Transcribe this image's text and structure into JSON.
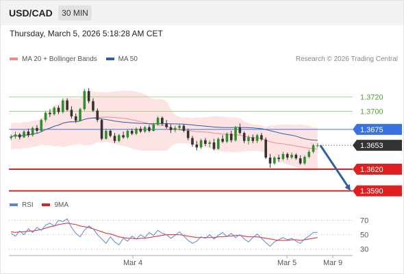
{
  "header": {
    "symbol": "USD/CAD",
    "timeframe": "30 MIN"
  },
  "datetime": "Thursday, March 5, 2026 5:18:28 AM CET",
  "legend": [
    {
      "label": "MA 20 + Bollinger Bands",
      "color": "#f08a8a"
    },
    {
      "label": "MA 50",
      "color": "#2e5e9e"
    }
  ],
  "credit": "Research © 2026 Trading Central",
  "rsi_legend": [
    {
      "label": "RSI",
      "color": "#5b86d6"
    },
    {
      "label": "9MA",
      "color": "#e02020"
    }
  ],
  "colors": {
    "resistance_green": "#a9d58b",
    "support_red": "#e02020",
    "pivot_blue": "#3a73e0",
    "last_price": "#333333",
    "arrow": "#2f5f9e",
    "candle_up": "#2d8f2d",
    "candle_down": "#333333",
    "band_fill": "#fde3e3"
  },
  "chart_data": [
    {
      "type": "line",
      "subtype": "candlestick",
      "x_tick_labels": [
        "Mar 4",
        "Mar 5",
        "Mar 9"
      ],
      "ylim": [
        1.3584,
        1.3762
      ],
      "levels": [
        {
          "value": 1.372,
          "label": "1.3720",
          "kind": "resistance"
        },
        {
          "value": 1.37,
          "label": "1.3700",
          "kind": "resistance"
        },
        {
          "value": 1.3675,
          "label": "1.3675",
          "kind": "pivot"
        },
        {
          "value": 1.3653,
          "label": "1.3653",
          "kind": "last"
        },
        {
          "value": 1.362,
          "label": "1.3620",
          "kind": "support"
        },
        {
          "value": 1.359,
          "label": "1.3590",
          "kind": "support"
        }
      ],
      "candles": [
        [
          1.3663,
          1.3668,
          1.366,
          1.3665
        ],
        [
          1.3665,
          1.3672,
          1.3662,
          1.3668
        ],
        [
          1.3668,
          1.367,
          1.3661,
          1.3664
        ],
        [
          1.3664,
          1.3674,
          1.3663,
          1.3672
        ],
        [
          1.3672,
          1.3676,
          1.3664,
          1.3667
        ],
        [
          1.3667,
          1.3679,
          1.3665,
          1.3677
        ],
        [
          1.3677,
          1.3681,
          1.367,
          1.3673
        ],
        [
          1.3673,
          1.369,
          1.3672,
          1.3688
        ],
        [
          1.3688,
          1.37,
          1.3685,
          1.3698
        ],
        [
          1.3698,
          1.3703,
          1.3692,
          1.3696
        ],
        [
          1.3696,
          1.3707,
          1.3694,
          1.3705
        ],
        [
          1.3705,
          1.3708,
          1.3696,
          1.3699
        ],
        [
          1.3699,
          1.3718,
          1.3697,
          1.3715
        ],
        [
          1.3715,
          1.3718,
          1.37,
          1.3702
        ],
        [
          1.3702,
          1.3707,
          1.369,
          1.3693
        ],
        [
          1.3693,
          1.3697,
          1.3684,
          1.3687
        ],
        [
          1.3687,
          1.3705,
          1.3686,
          1.3703
        ],
        [
          1.3703,
          1.3731,
          1.3701,
          1.3728
        ],
        [
          1.3728,
          1.3732,
          1.3711,
          1.3714
        ],
        [
          1.3714,
          1.3718,
          1.3699,
          1.3701
        ],
        [
          1.3701,
          1.3704,
          1.3685,
          1.3688
        ],
        [
          1.3688,
          1.369,
          1.366,
          1.3662
        ],
        [
          1.3662,
          1.3676,
          1.3661,
          1.3673
        ],
        [
          1.3673,
          1.3675,
          1.3664,
          1.3666
        ],
        [
          1.3666,
          1.367,
          1.3656,
          1.3659
        ],
        [
          1.3659,
          1.3669,
          1.3657,
          1.3667
        ],
        [
          1.3667,
          1.3672,
          1.3662,
          1.3664
        ],
        [
          1.3664,
          1.3675,
          1.3662,
          1.3673
        ],
        [
          1.3673,
          1.3676,
          1.3667,
          1.3669
        ],
        [
          1.3669,
          1.3678,
          1.3667,
          1.3676
        ],
        [
          1.3676,
          1.3679,
          1.367,
          1.3672
        ],
        [
          1.3672,
          1.368,
          1.367,
          1.3678
        ],
        [
          1.3678,
          1.3681,
          1.3671,
          1.3673
        ],
        [
          1.3673,
          1.3684,
          1.3672,
          1.3682
        ],
        [
          1.3682,
          1.3693,
          1.368,
          1.3691
        ],
        [
          1.3691,
          1.3693,
          1.368,
          1.3683
        ],
        [
          1.3683,
          1.3688,
          1.3676,
          1.3678
        ],
        [
          1.3678,
          1.3682,
          1.367,
          1.3674
        ],
        [
          1.3674,
          1.368,
          1.3671,
          1.3677
        ],
        [
          1.3677,
          1.3683,
          1.3674,
          1.368
        ],
        [
          1.368,
          1.3682,
          1.3671,
          1.3673
        ],
        [
          1.3673,
          1.3676,
          1.366,
          1.3663
        ],
        [
          1.3663,
          1.3666,
          1.3651,
          1.3654
        ],
        [
          1.3654,
          1.3659,
          1.3646,
          1.365
        ],
        [
          1.365,
          1.3662,
          1.3648,
          1.366
        ],
        [
          1.366,
          1.3663,
          1.3652,
          1.3655
        ],
        [
          1.3655,
          1.366,
          1.365,
          1.3657
        ],
        [
          1.3657,
          1.3662,
          1.3646,
          1.3648
        ],
        [
          1.3648,
          1.3664,
          1.3647,
          1.3662
        ],
        [
          1.3662,
          1.3667,
          1.3656,
          1.3658
        ],
        [
          1.3658,
          1.3671,
          1.3656,
          1.3669
        ],
        [
          1.3669,
          1.3673,
          1.3657,
          1.366
        ],
        [
          1.366,
          1.368,
          1.3658,
          1.3678
        ],
        [
          1.3678,
          1.3683,
          1.3668,
          1.367
        ],
        [
          1.367,
          1.3672,
          1.3656,
          1.3659
        ],
        [
          1.3659,
          1.3667,
          1.3654,
          1.3664
        ],
        [
          1.3664,
          1.3668,
          1.3656,
          1.3659
        ],
        [
          1.3659,
          1.3669,
          1.3656,
          1.3667
        ],
        [
          1.3667,
          1.367,
          1.3659,
          1.3661
        ],
        [
          1.3661,
          1.3664,
          1.3634,
          1.3636
        ],
        [
          1.3636,
          1.3641,
          1.3622,
          1.3628
        ],
        [
          1.3628,
          1.3638,
          1.3626,
          1.3636
        ],
        [
          1.3636,
          1.364,
          1.363,
          1.3634
        ],
        [
          1.3634,
          1.3644,
          1.3632,
          1.3641
        ],
        [
          1.3641,
          1.3643,
          1.3633,
          1.3636
        ],
        [
          1.3636,
          1.3643,
          1.3634,
          1.364
        ],
        [
          1.364,
          1.3642,
          1.3633,
          1.3635
        ],
        [
          1.3635,
          1.3639,
          1.3626,
          1.3628
        ],
        [
          1.3628,
          1.3639,
          1.3626,
          1.3637
        ],
        [
          1.3637,
          1.3647,
          1.3635,
          1.3644
        ],
        [
          1.3644,
          1.3655,
          1.3642,
          1.3653
        ],
        [
          1.3653,
          1.3656,
          1.365,
          1.3653
        ]
      ],
      "projection": {
        "from": 1.3653,
        "to": 1.359,
        "style": "arrow"
      }
    },
    {
      "type": "line",
      "series": [
        {
          "name": "RSI"
        },
        {
          "name": "9MA"
        }
      ],
      "ylim": [
        25,
        78
      ],
      "y_ticks": [
        30,
        50,
        70
      ],
      "rsi": [
        52,
        48,
        55,
        50,
        58,
        53,
        60,
        56,
        63,
        66,
        62,
        70,
        68,
        72,
        60,
        52,
        47,
        56,
        62,
        58,
        50,
        44,
        38,
        47,
        40,
        36,
        45,
        41,
        48,
        44,
        50,
        46,
        53,
        49,
        56,
        52,
        50,
        45,
        49,
        54,
        48,
        42,
        38,
        41,
        47,
        45,
        50,
        44,
        49,
        53,
        47,
        52,
        46,
        50,
        44,
        40,
        46,
        51,
        45,
        39,
        34,
        40,
        43,
        46,
        43,
        45,
        41,
        38,
        44,
        48,
        53,
        53
      ],
      "ma9": [
        54,
        53,
        54,
        54,
        55,
        55,
        56,
        57,
        59,
        61,
        62,
        64,
        65,
        66,
        65,
        64,
        62,
        61,
        60,
        58,
        56,
        54,
        52,
        51,
        49,
        47,
        46,
        45,
        45,
        44,
        45,
        45,
        46,
        47,
        48,
        49,
        50,
        50,
        50,
        50,
        49,
        48,
        47,
        46,
        46,
        46,
        46,
        46,
        47,
        47,
        48,
        48,
        49,
        49,
        48,
        47,
        47,
        47,
        46,
        45,
        44,
        43,
        42,
        42,
        42,
        43,
        43,
        42,
        43,
        44,
        45,
        46
      ]
    }
  ]
}
